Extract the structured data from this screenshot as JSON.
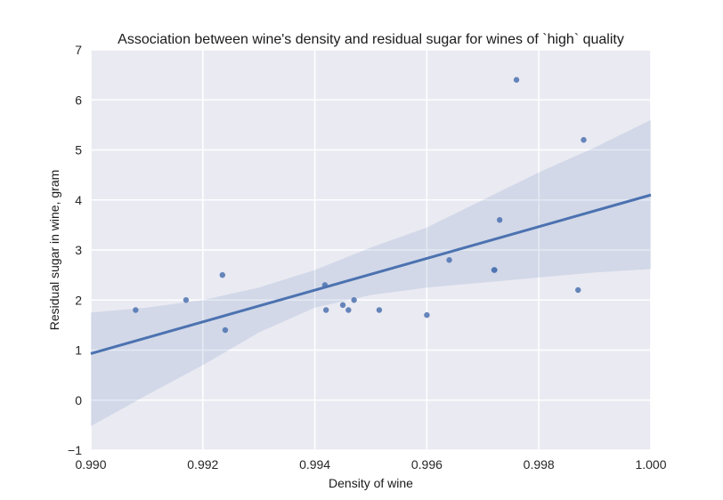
{
  "chart_data": {
    "type": "scatter",
    "title": "Association between wine's density and residual sugar for wines of `high` quality",
    "xlabel": "Density of wine",
    "ylabel": "Residual sugar in wine, gram",
    "xlim": [
      0.99,
      1.0
    ],
    "ylim": [
      -1,
      7
    ],
    "x_ticks": [
      "0.990",
      "0.992",
      "0.994",
      "0.996",
      "0.998",
      "1.000"
    ],
    "y_ticks": [
      "−1",
      "0",
      "1",
      "2",
      "3",
      "4",
      "5",
      "6",
      "7"
    ],
    "grid": true,
    "background": "#eaeaf2",
    "series": [
      {
        "color": "#4c72b0",
        "points": [
          {
            "x": 0.9908,
            "y": 1.8
          },
          {
            "x": 0.9917,
            "y": 2.0
          },
          {
            "x": 0.99235,
            "y": 2.5
          },
          {
            "x": 0.9924,
            "y": 1.4
          },
          {
            "x": 0.99418,
            "y": 2.3
          },
          {
            "x": 0.9942,
            "y": 1.8
          },
          {
            "x": 0.9945,
            "y": 1.9
          },
          {
            "x": 0.9946,
            "y": 1.8
          },
          {
            "x": 0.9947,
            "y": 2.0
          },
          {
            "x": 0.99515,
            "y": 1.8
          },
          {
            "x": 0.996,
            "y": 1.7
          },
          {
            "x": 0.9964,
            "y": 2.8
          },
          {
            "x": 0.9972,
            "y": 2.6
          },
          {
            "x": 0.99721,
            "y": 2.6
          },
          {
            "x": 0.9973,
            "y": 3.6
          },
          {
            "x": 0.9976,
            "y": 6.4
          },
          {
            "x": 0.9987,
            "y": 2.2
          },
          {
            "x": 0.9988,
            "y": 5.2
          }
        ]
      }
    ],
    "regression": {
      "line": [
        [
          0.99,
          0.93
        ],
        [
          1.0,
          4.1
        ]
      ],
      "confidence_band": {
        "x": [
          0.99,
          0.991,
          0.992,
          0.993,
          0.994,
          0.995,
          0.996,
          0.997,
          0.998,
          0.999,
          1.0
        ],
        "upper": [
          1.75,
          1.85,
          2.0,
          2.25,
          2.6,
          3.05,
          3.45,
          4.0,
          4.55,
          5.05,
          5.6
        ],
        "lower": [
          -0.52,
          0.1,
          0.7,
          1.35,
          1.85,
          2.1,
          2.25,
          2.35,
          2.45,
          2.55,
          2.62
        ]
      },
      "color": "#4c72b0"
    }
  }
}
